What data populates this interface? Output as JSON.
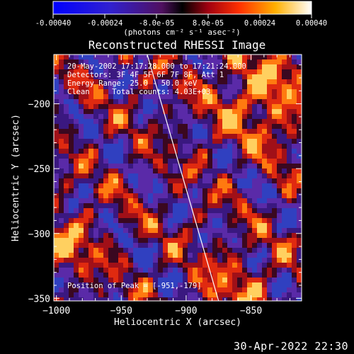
{
  "chart_data": {
    "type": "heatmap",
    "title": "Reconstructed RHESSI Image",
    "xlabel": "Heliocentric X (arcsec)",
    "ylabel": "Heliocentric Y (arcsec)",
    "xlim": [
      -1002,
      -811
    ],
    "ylim": [
      -352,
      -162
    ],
    "xticks": [
      -1000,
      -950,
      -900,
      -850
    ],
    "yticks": [
      -200,
      -250,
      -300,
      -350
    ],
    "colorbar": {
      "ticks": [
        "-0.00040",
        "-0.00024",
        "-8.0e-05",
        "8.0e-05",
        "0.00024",
        "0.00040"
      ],
      "unit_label": "(photons cm⁻² s⁻¹ asec⁻²)",
      "range": [
        -0.0004,
        0.0004
      ]
    },
    "annotations": [
      "20-May-2002 17:17:28.000 to 17:21:24.000",
      "Detectors: 3F 4F 5F 6F 7F 8F, Att 1",
      "Energy Range: 25.0 - 50.0 keV",
      "Clean     Total counts: 4.03E+03"
    ],
    "peak_label": "Position of Peak = [-951,-179]",
    "limb_line": [
      [
        -930,
        -162
      ],
      [
        -875,
        -352
      ]
    ]
  },
  "footer": {
    "date": "30-Apr-2022 22:30"
  },
  "colors": {
    "background": "#000000",
    "text": "#ffffff"
  }
}
